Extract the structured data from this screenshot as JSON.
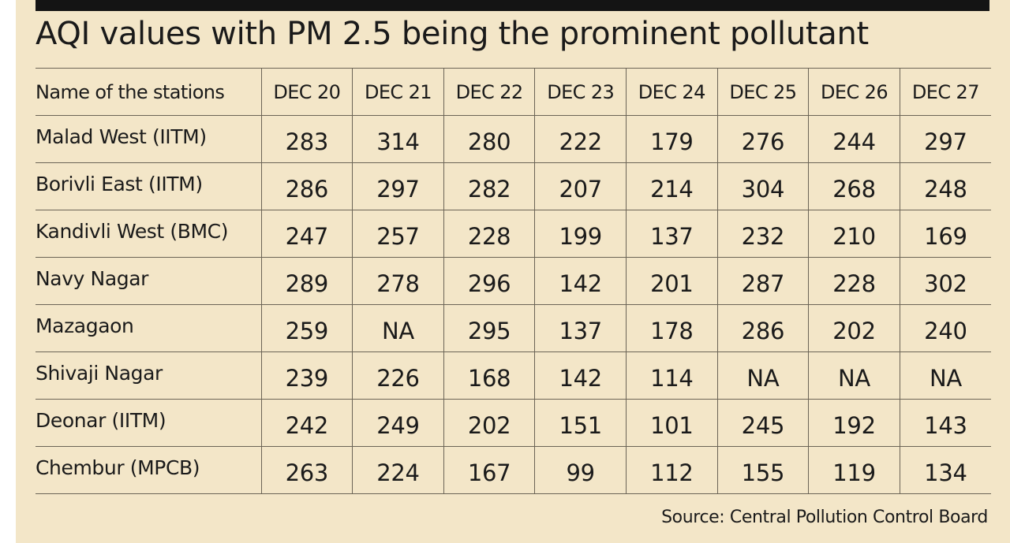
{
  "chart_data": {
    "type": "table",
    "title": "AQI values with PM 2.5 being the prominent pollutant",
    "columns": [
      "Name of the stations",
      "DEC 20",
      "DEC 21",
      "DEC 22",
      "DEC 23",
      "DEC 24",
      "DEC 25",
      "DEC 26",
      "DEC 27"
    ],
    "rows": [
      {
        "station": "Malad West (IITM)",
        "values": [
          "283",
          "314",
          "280",
          "222",
          "179",
          "276",
          "244",
          "297"
        ]
      },
      {
        "station": "Borivli East (IITM)",
        "values": [
          "286",
          "297",
          "282",
          "207",
          "214",
          "304",
          "268",
          "248"
        ]
      },
      {
        "station": "Kandivli West (BMC)",
        "values": [
          "247",
          "257",
          "228",
          "199",
          "137",
          "232",
          "210",
          "169"
        ]
      },
      {
        "station": "Navy Nagar",
        "values": [
          "289",
          "278",
          "296",
          "142",
          "201",
          "287",
          "228",
          "302"
        ]
      },
      {
        "station": "Mazagaon",
        "values": [
          "259",
          "NA",
          "295",
          "137",
          "178",
          "286",
          "202",
          "240"
        ]
      },
      {
        "station": "Shivaji Nagar",
        "values": [
          "239",
          "226",
          "168",
          "142",
          "114",
          "NA",
          "NA",
          "NA"
        ]
      },
      {
        "station": "Deonar (IITM)",
        "values": [
          "242",
          "249",
          "202",
          "151",
          "101",
          "245",
          "192",
          "143"
        ]
      },
      {
        "station": "Chembur (MPCB)",
        "values": [
          "263",
          "224",
          "167",
          "99",
          "112",
          "155",
          "119",
          "134"
        ]
      }
    ],
    "source": "Source: Central Pollution Control Board"
  },
  "colors": {
    "background": "#f3e6c8",
    "top_bar": "#141414",
    "text": "#1a1a1a",
    "rule": "#6b6456"
  }
}
